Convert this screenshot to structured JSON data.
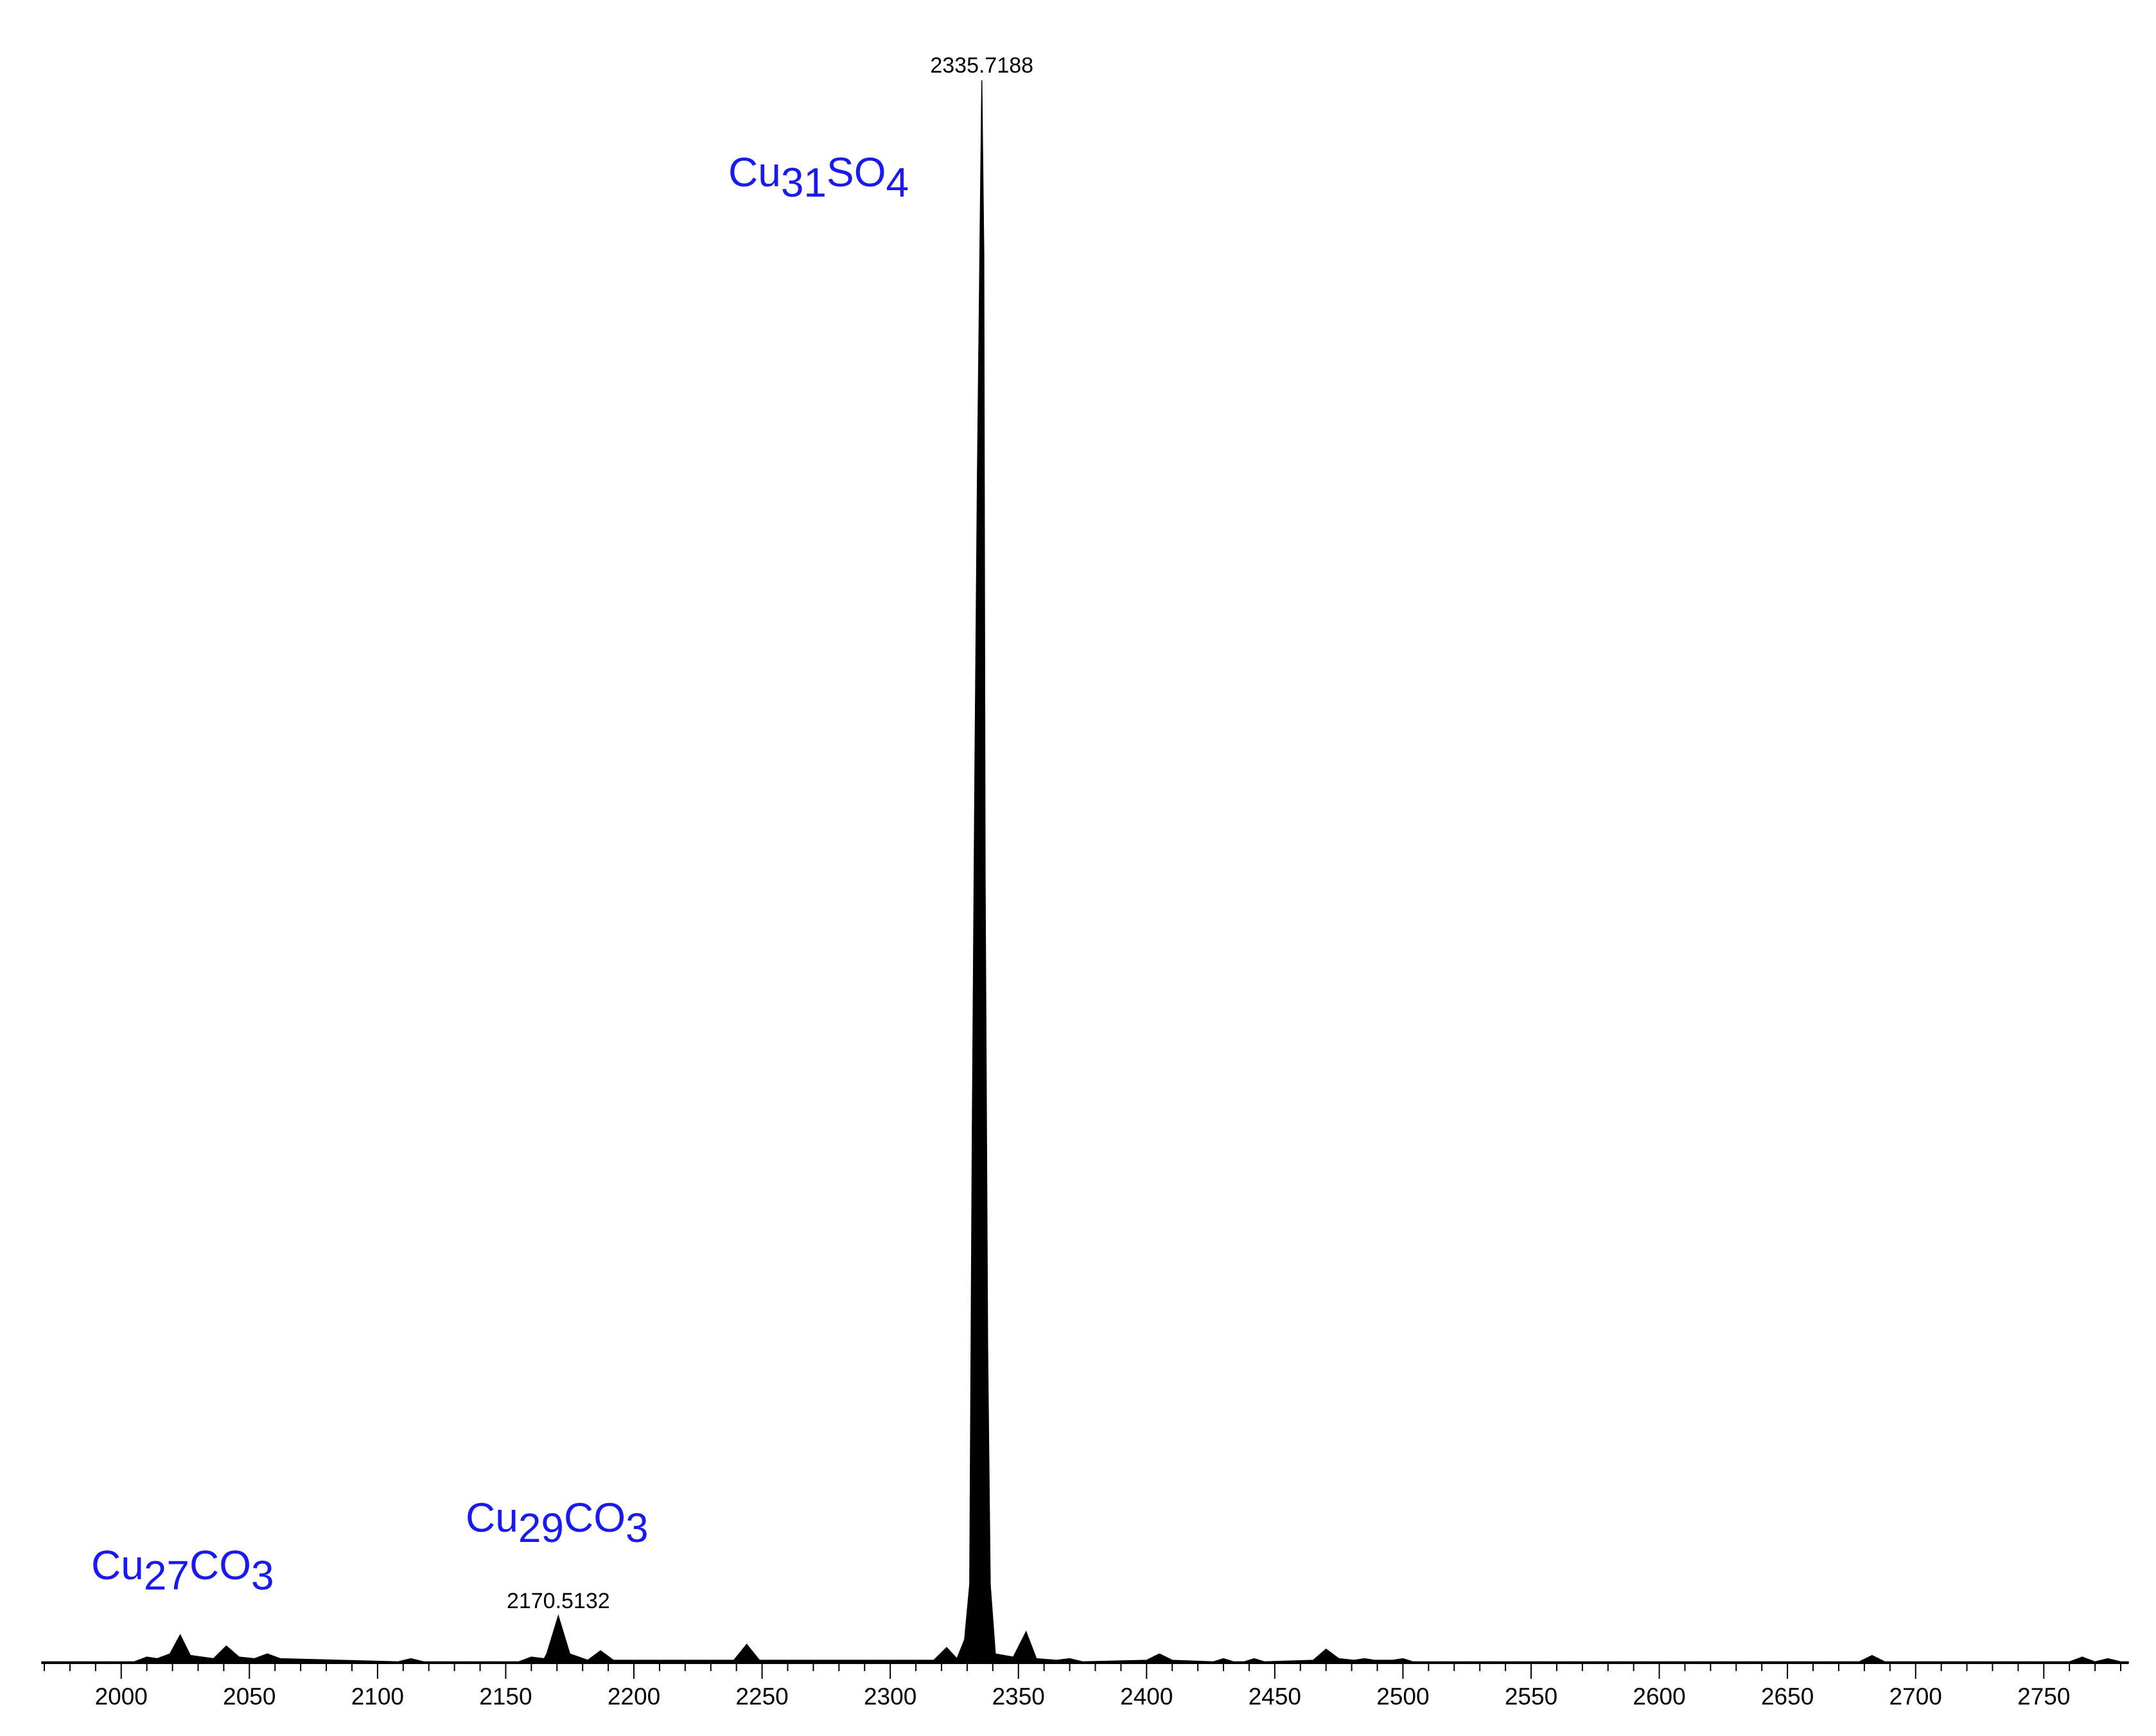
{
  "chart_data": {
    "type": "spectrum",
    "xlim": [
      1969,
      2783
    ],
    "ylim": [
      0,
      100
    ],
    "xticks": [
      2000,
      2050,
      2100,
      2150,
      2200,
      2250,
      2300,
      2350,
      2400,
      2450,
      2500,
      2550,
      2600,
      2650,
      2700,
      2750
    ],
    "xminorticks": [
      1970,
      1980,
      1990,
      2010,
      2020,
      2030,
      2040,
      2060,
      2070,
      2080,
      2090,
      2110,
      2120,
      2130,
      2140,
      2160,
      2170,
      2180,
      2190,
      2210,
      2220,
      2230,
      2240,
      2260,
      2270,
      2280,
      2290,
      2310,
      2320,
      2330,
      2340,
      2360,
      2370,
      2380,
      2390,
      2410,
      2420,
      2430,
      2440,
      2460,
      2470,
      2480,
      2490,
      2510,
      2520,
      2530,
      2540,
      2560,
      2570,
      2580,
      2590,
      2610,
      2620,
      2630,
      2640,
      2660,
      2670,
      2680,
      2690,
      2710,
      2720,
      2730,
      2740,
      2760,
      2770,
      2780
    ],
    "series": [
      {
        "color": "#000000",
        "x": [
          1969,
          2005,
          2010,
          2014,
          2019,
          2023,
          2027,
          2036,
          2041,
          2046,
          2052,
          2057,
          2062,
          2108,
          2113,
          2118,
          2155,
          2160,
          2165,
          2166,
          2170.5132,
          2175,
          2182,
          2187,
          2192,
          2239,
          2244,
          2249,
          2317,
          2322,
          2326,
          2329,
          2331,
          2332,
          2333,
          2334,
          2335.7188,
          2336.5,
          2337,
          2338,
          2339,
          2341,
          2348,
          2353,
          2357,
          2365,
          2370,
          2375,
          2400,
          2405,
          2410,
          2426,
          2430,
          2434,
          2438,
          2442,
          2446,
          2465,
          2470,
          2475,
          2481,
          2485,
          2489,
          2496,
          2500,
          2504,
          2678,
          2683,
          2688,
          2760,
          2765,
          2770,
          2775,
          2780,
          2783
        ],
        "values": [
          0.1,
          0.1,
          0.4,
          0.3,
          0.6,
          1.8,
          0.5,
          0.3,
          1.1,
          0.4,
          0.3,
          0.6,
          0.3,
          0.1,
          0.3,
          0.1,
          0.1,
          0.4,
          0.3,
          0.6,
          3.0,
          0.6,
          0.2,
          0.8,
          0.2,
          0.2,
          1.2,
          0.2,
          0.2,
          1.0,
          0.3,
          1.5,
          5.0,
          33.6,
          56,
          75,
          100,
          89,
          50,
          20,
          5,
          0.6,
          0.4,
          2.0,
          0.3,
          0.2,
          0.3,
          0.1,
          0.2,
          0.6,
          0.2,
          0.1,
          0.3,
          0.1,
          0.1,
          0.3,
          0.1,
          0.2,
          0.9,
          0.3,
          0.2,
          0.3,
          0.2,
          0.2,
          0.3,
          0.1,
          0.1,
          0.5,
          0.1,
          0.1,
          0.4,
          0.1,
          0.3,
          0.1,
          0.1
        ]
      }
    ],
    "peak_labels": [
      {
        "x": 2335.7188
      },
      {
        "x": 2170.5132
      }
    ],
    "annotations": [
      {
        "text": [
          "Cu",
          "31",
          "SO",
          "4"
        ]
      },
      {
        "text": [
          "Cu",
          "27",
          "CO",
          "3"
        ]
      },
      {
        "text": [
          "Cu",
          "29",
          "CO",
          "3"
        ]
      }
    ]
  }
}
